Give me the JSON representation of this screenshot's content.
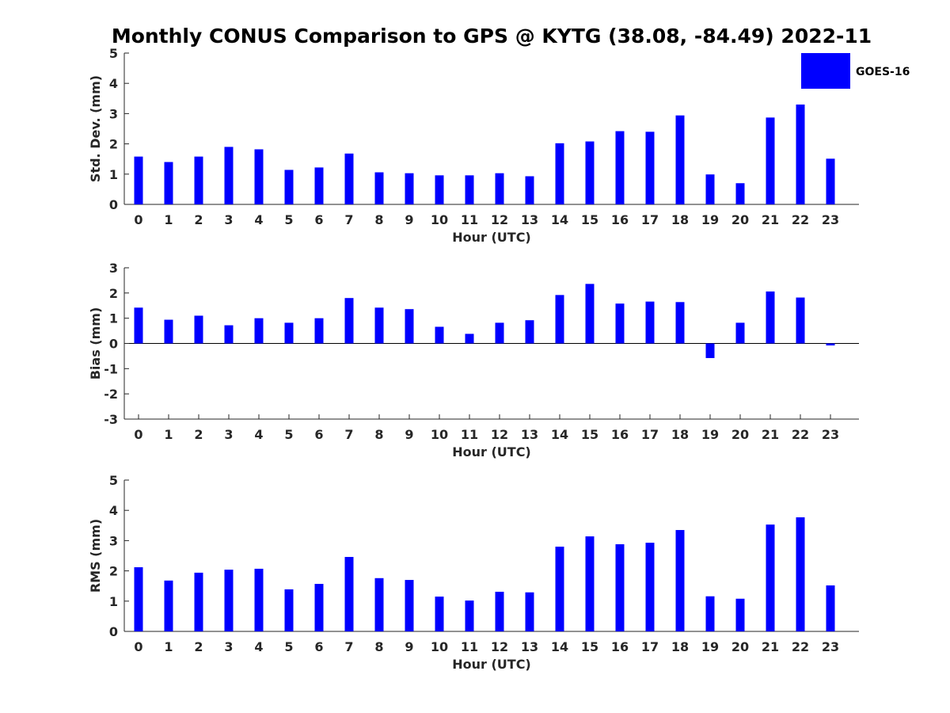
{
  "colors": {
    "bar": "#0000ff",
    "axis": "#262626",
    "background": "#ffffff"
  },
  "chart_data": {
    "title": "Monthly CONUS Comparison to GPS @ KYTG (38.08, -84.49) 2022-11",
    "legend": {
      "entries": [
        "GOES-16"
      ],
      "placement": "top-right"
    },
    "panels": [
      {
        "type": "bar",
        "series": [
          {
            "name": "GOES-16",
            "values": [
              1.58,
              1.4,
              1.58,
              1.9,
              1.82,
              1.14,
              1.22,
              1.68,
              1.06,
              1.03,
              0.96,
              0.96,
              1.03,
              0.93,
              2.02,
              2.08,
              2.42,
              2.4,
              2.94,
              0.99,
              0.7,
              2.87,
              3.3,
              1.51
            ]
          }
        ],
        "categories": [
          "0",
          "1",
          "2",
          "3",
          "4",
          "5",
          "6",
          "7",
          "8",
          "9",
          "10",
          "11",
          "12",
          "13",
          "14",
          "15",
          "16",
          "17",
          "18",
          "19",
          "20",
          "21",
          "22",
          "23"
        ],
        "xlabel": "Hour (UTC)",
        "ylabel": "Std. Dev. (mm)",
        "ylim": [
          0,
          5
        ],
        "yticks": [
          "0",
          "1",
          "2",
          "3",
          "4",
          "5"
        ],
        "grid": false
      },
      {
        "type": "bar",
        "series": [
          {
            "name": "GOES-16",
            "values": [
              1.42,
              0.94,
              1.1,
              0.72,
              1.0,
              0.82,
              1.0,
              1.8,
              1.42,
              1.36,
              0.66,
              0.38,
              0.82,
              0.92,
              1.92,
              2.36,
              1.58,
              1.66,
              1.64,
              -0.58,
              0.82,
              2.06,
              1.82,
              -0.08
            ]
          }
        ],
        "categories": [
          "0",
          "1",
          "2",
          "3",
          "4",
          "5",
          "6",
          "7",
          "8",
          "9",
          "10",
          "11",
          "12",
          "13",
          "14",
          "15",
          "16",
          "17",
          "18",
          "19",
          "20",
          "21",
          "22",
          "23"
        ],
        "xlabel": "Hour (UTC)",
        "ylabel": "Bias (mm)",
        "ylim": [
          -3,
          3
        ],
        "yticks": [
          "-3",
          "-2",
          "-1",
          "0",
          "1",
          "2",
          "3"
        ],
        "grid": false
      },
      {
        "type": "bar",
        "series": [
          {
            "name": "GOES-16",
            "values": [
              2.12,
              1.68,
              1.94,
              2.04,
              2.07,
              1.39,
              1.57,
              2.46,
              1.76,
              1.7,
              1.15,
              1.02,
              1.31,
              1.29,
              2.8,
              3.14,
              2.88,
              2.93,
              3.35,
              1.16,
              1.08,
              3.53,
              3.77,
              1.52
            ]
          }
        ],
        "categories": [
          "0",
          "1",
          "2",
          "3",
          "4",
          "5",
          "6",
          "7",
          "8",
          "9",
          "10",
          "11",
          "12",
          "13",
          "14",
          "15",
          "16",
          "17",
          "18",
          "19",
          "20",
          "21",
          "22",
          "23"
        ],
        "xlabel": "Hour (UTC)",
        "ylabel": "RMS (mm)",
        "ylim": [
          0,
          5
        ],
        "yticks": [
          "0",
          "1",
          "2",
          "3",
          "4",
          "5"
        ],
        "grid": false
      }
    ]
  }
}
